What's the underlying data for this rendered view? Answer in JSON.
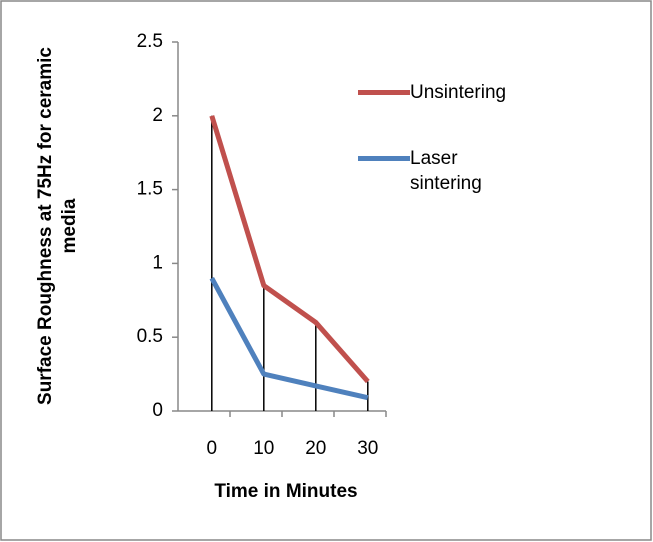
{
  "chart_data": {
    "type": "line",
    "y_label": "Surface Roughness at 75Hz for ceramic media",
    "x_label": "Time in Minutes",
    "categories": [
      "0",
      "10",
      "20",
      "30"
    ],
    "series": [
      {
        "name": "Unsintering",
        "color": "#c0504d",
        "values": [
          2,
          0.85,
          0.6,
          0.2
        ]
      },
      {
        "name": "Laser sintering",
        "color": "#4f81bd",
        "values": [
          0.9,
          0.25,
          0.17,
          0.09
        ]
      }
    ],
    "ylim": [
      0,
      2.5
    ],
    "yticks": [
      0,
      0.5,
      1,
      1.5,
      2,
      2.5
    ],
    "drop_lines": true
  }
}
